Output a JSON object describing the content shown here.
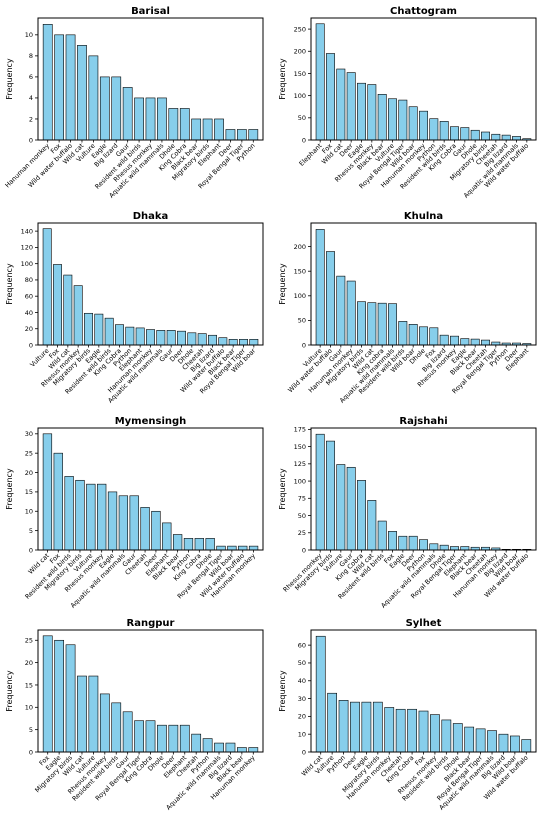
{
  "chart_data": [
    {
      "type": "bar",
      "title": "Barisal",
      "ylabel": "Frequency",
      "color": "#87ceeb",
      "categories": [
        "Hanuman monkey",
        "Fox",
        "Wild water buffalo",
        "Wild cat",
        "Vulture",
        "Eagle",
        "Big lizard",
        "Gaur",
        "Resident wild birds",
        "Rhesus monkey",
        "Aquatic wild mammals",
        "Dhole",
        "King Cobra",
        "Black bear",
        "Migratory birds",
        "Elephant",
        "Deer",
        "Royal Bengal Tiger",
        "Python"
      ],
      "values": [
        11,
        10,
        10,
        9,
        8,
        6,
        6,
        5,
        4,
        4,
        4,
        3,
        3,
        2,
        2,
        2,
        1,
        1,
        1
      ],
      "ylim": [
        0,
        11.6
      ],
      "yticks": [
        0,
        2,
        4,
        6,
        8,
        10
      ]
    },
    {
      "type": "bar",
      "title": "Chattogram",
      "ylabel": "Frequency",
      "color": "#87ceeb",
      "categories": [
        "Elephant",
        "Fox",
        "Wild cat",
        "Deer",
        "Eagle",
        "Rhesus monkey",
        "Black bear",
        "Vulture",
        "Royal Bengal Tiger",
        "Wild boar",
        "Hanuman monkey",
        "Python",
        "Resident wild birds",
        "King Cobra",
        "Gaur",
        "Dhole",
        "Migratory birds",
        "Cheetah",
        "Big lizard",
        "Aquatic wild mammals",
        "Wild water buffalo"
      ],
      "values": [
        262,
        195,
        160,
        152,
        128,
        125,
        103,
        93,
        90,
        75,
        65,
        48,
        42,
        30,
        28,
        22,
        18,
        13,
        11,
        8,
        3
      ],
      "ylim": [
        0,
        275
      ],
      "yticks": [
        0,
        50,
        100,
        150,
        200,
        250
      ]
    },
    {
      "type": "bar",
      "title": "Dhaka",
      "ylabel": "Frequency",
      "color": "#87ceeb",
      "categories": [
        "Vulture",
        "Fox",
        "Wild cat",
        "Rhesus monkey",
        "Migratory birds",
        "Eagle",
        "Resident wild birds",
        "King Cobra",
        "Python",
        "Elephant",
        "Hanuman monkey",
        "Aquatic wild mammals",
        "Gaur",
        "Deer",
        "Dhole",
        "Cheetah",
        "Big lizard",
        "Wild water buffalo",
        "Black bear",
        "Royal Bengal Tiger",
        "Wild boar"
      ],
      "values": [
        143,
        99,
        86,
        73,
        39,
        38,
        33,
        25,
        22,
        21,
        19,
        18,
        18,
        17,
        15,
        14,
        12,
        9,
        7,
        7,
        7
      ],
      "ylim": [
        0,
        150
      ],
      "yticks": [
        0,
        20,
        40,
        60,
        80,
        100,
        120,
        140
      ]
    },
    {
      "type": "bar",
      "title": "Khulna",
      "ylabel": "Frequency",
      "color": "#87ceeb",
      "categories": [
        "Vulture",
        "Wild water buffalo",
        "Gaur",
        "Hanuman monkey",
        "Migratory birds",
        "Wild cat",
        "King cobra",
        "Aquatic wild mammals",
        "Resident wild birds",
        "Wild boar",
        "Dhole",
        "Fox",
        "Big lizard",
        "Rhesus monkey",
        "Eagle",
        "Black bear",
        "Cheetah",
        "Royal Bengal Tiger",
        "Python",
        "Deer",
        "Elephant"
      ],
      "values": [
        235,
        190,
        140,
        130,
        88,
        86,
        85,
        84,
        48,
        42,
        37,
        35,
        20,
        18,
        13,
        12,
        10,
        6,
        4,
        4,
        3
      ],
      "ylim": [
        0,
        248
      ],
      "yticks": [
        0,
        50,
        100,
        150,
        200
      ]
    },
    {
      "type": "bar",
      "title": "Mymensingh",
      "ylabel": "Frequency",
      "color": "#87ceeb",
      "categories": [
        "Wild cat",
        "Fox",
        "Resident wild birds",
        "Migratory birds",
        "Vulture",
        "Rhesus monkey",
        "Eagle",
        "Aquatic wild mammals",
        "Gaur",
        "Cheetah",
        "Deer",
        "Elephant",
        "Black bear",
        "Python",
        "King Cobra",
        "Dhole",
        "Royal Bengal Tiger",
        "Wild boar",
        "Wild water buffalo",
        "Hanuman monkey"
      ],
      "values": [
        30,
        25,
        19,
        18,
        17,
        17,
        15,
        14,
        14,
        11,
        10,
        7,
        4,
        3,
        3,
        3,
        1,
        1,
        1,
        1
      ],
      "ylim": [
        0,
        31.5
      ],
      "yticks": [
        0,
        5,
        10,
        15,
        20,
        25,
        30
      ]
    },
    {
      "type": "bar",
      "title": "Rajshahi",
      "ylabel": "Frequency",
      "color": "#87ceeb",
      "categories": [
        "Rhesus monkey",
        "Migratory birds",
        "Vulture",
        "Gaur",
        "King Cobra",
        "Wild cat",
        "Resident wild birds",
        "Fox",
        "Eagle",
        "Deer",
        "Python",
        "Aquatic wild mammals",
        "Dhole",
        "Royal Bengal Tiger",
        "Elephant",
        "Black bear",
        "Cheetah",
        "Hanuman monkey",
        "Big lizard",
        "Wild boar",
        "Wild water buffalo"
      ],
      "values": [
        168,
        158,
        124,
        120,
        101,
        72,
        42,
        27,
        20,
        20,
        15,
        9,
        7,
        5,
        5,
        4,
        4,
        3,
        1,
        1,
        1
      ],
      "ylim": [
        0,
        177
      ],
      "yticks": [
        0,
        25,
        50,
        75,
        100,
        125,
        150,
        175
      ]
    },
    {
      "type": "bar",
      "title": "Rangpur",
      "ylabel": "Frequency",
      "color": "#87ceeb",
      "categories": [
        "Fox",
        "Eagle",
        "Migratory birds",
        "Wild cat",
        "Vulture",
        "Rhesus monkey",
        "Resident wild birds",
        "Gaur",
        "Royal Bengal Tiger",
        "King Cobra",
        "Dhole",
        "Deer",
        "Elephant",
        "Cheetah",
        "Python",
        "Aquatic wild mammals",
        "Big lizard",
        "Black bear",
        "Hanuman monkey"
      ],
      "values": [
        26,
        25,
        24,
        17,
        17,
        13,
        11,
        9,
        7,
        7,
        6,
        6,
        6,
        4,
        3,
        2,
        2,
        1,
        1
      ],
      "ylim": [
        0,
        27.3
      ],
      "yticks": [
        0,
        5,
        10,
        15,
        20,
        25
      ]
    },
    {
      "type": "bar",
      "title": "Sylhet",
      "ylabel": "Frequency",
      "color": "#87ceeb",
      "categories": [
        "Wild cat",
        "Vulture",
        "Python",
        "Deer",
        "Eagle",
        "Migratory birds",
        "Hanuman monkey",
        "Cheetah",
        "King Cobra",
        "Fox",
        "Rhesus monkey",
        "Resident wild birds",
        "Dhole",
        "Black bear",
        "Royal Bengal Tiger",
        "Aquatic wild mammals",
        "Big lizard",
        "Wild boar",
        "Wild water buffalo"
      ],
      "values": [
        65,
        33,
        29,
        28,
        28,
        28,
        25,
        24,
        24,
        23,
        21,
        18,
        16,
        14,
        13,
        12,
        10,
        9,
        7
      ],
      "ylim": [
        0,
        68.5
      ],
      "yticks": [
        0,
        10,
        20,
        30,
        40,
        50,
        60
      ]
    }
  ]
}
